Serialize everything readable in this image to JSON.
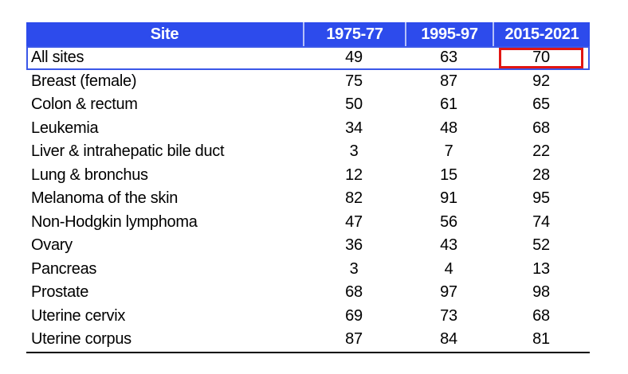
{
  "chart_data": {
    "type": "table",
    "columns": [
      "Site",
      "1975-77",
      "1995-97",
      "2015-2021"
    ],
    "rows": [
      [
        "All sites",
        49,
        63,
        70
      ],
      [
        "Breast (female)",
        75,
        87,
        92
      ],
      [
        "Colon & rectum",
        50,
        61,
        65
      ],
      [
        "Leukemia",
        34,
        48,
        68
      ],
      [
        "Liver & intrahepatic bile duct",
        3,
        7,
        22
      ],
      [
        "Lung & bronchus",
        12,
        15,
        28
      ],
      [
        "Melanoma of the skin",
        82,
        91,
        95
      ],
      [
        "Non-Hodgkin lymphoma",
        47,
        56,
        74
      ],
      [
        "Ovary",
        36,
        43,
        52
      ],
      [
        "Pancreas",
        3,
        4,
        13
      ],
      [
        "Prostate",
        68,
        97,
        98
      ],
      [
        "Uterine cervix",
        69,
        73,
        68
      ],
      [
        "Uterine corpus",
        87,
        84,
        81
      ]
    ],
    "layout_hints": {
      "header_row": true,
      "numeric_columns_centered": true,
      "site_column_left_aligned": true
    },
    "annotations": [
      "Row 'All sites' is outlined with a blue border",
      "Value 70 (All sites, 2015-2021) is enclosed in a red box"
    ]
  },
  "highlight": {
    "row_index": 0,
    "col_index": 3,
    "row_label": "All sites",
    "column_label": "2015-2021",
    "value": 70
  },
  "styles": {
    "canvas_bg": "#ffffff",
    "header_bg": "#2d4bec",
    "header_text": "#ffffff",
    "header_divider": "rgba(255,255,255,0.65)",
    "body_text": "#000000",
    "highlight_row_border": "#3a57e8",
    "red_box_border": "#e11612",
    "table_bottom_border": "#000000"
  }
}
